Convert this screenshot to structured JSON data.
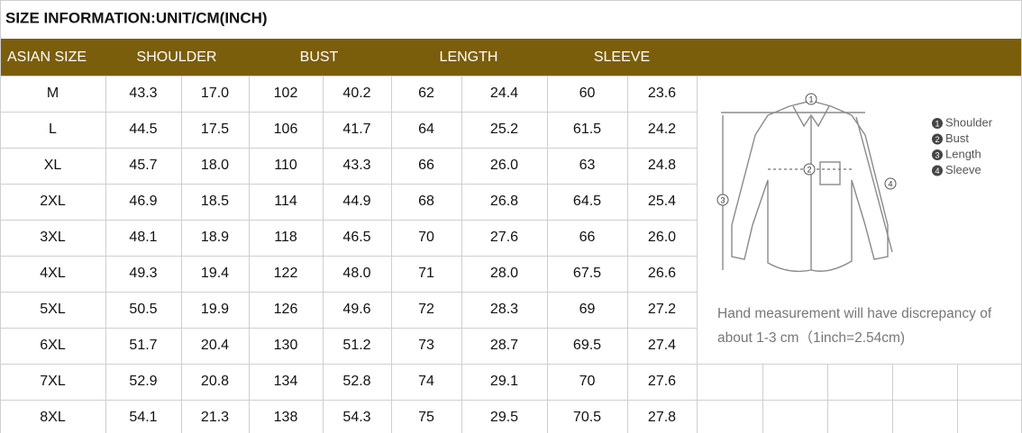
{
  "header": {
    "title": "SIZE INFORMATION:UNIT/CM(INCH)",
    "columns": [
      "ASIAN SIZE",
      "SHOULDER",
      "BUST",
      "LENGTH",
      "SLEEVE"
    ]
  },
  "table": {
    "rows": [
      [
        "M",
        "43.3",
        "17.0",
        "102",
        "40.2",
        "62",
        "24.4",
        "60",
        "23.6"
      ],
      [
        "L",
        "44.5",
        "17.5",
        "106",
        "41.7",
        "64",
        "25.2",
        "61.5",
        "24.2"
      ],
      [
        "XL",
        "45.7",
        "18.0",
        "110",
        "43.3",
        "66",
        "26.0",
        "63",
        "24.8"
      ],
      [
        "2XL",
        "46.9",
        "18.5",
        "114",
        "44.9",
        "68",
        "26.8",
        "64.5",
        "25.4"
      ],
      [
        "3XL",
        "48.1",
        "18.9",
        "118",
        "46.5",
        "70",
        "27.6",
        "66",
        "26.0"
      ],
      [
        "4XL",
        "49.3",
        "19.4",
        "122",
        "48.0",
        "71",
        "28.0",
        "67.5",
        "26.6"
      ],
      [
        "5XL",
        "50.5",
        "19.9",
        "126",
        "49.6",
        "72",
        "28.3",
        "69",
        "27.2"
      ],
      [
        "6XL",
        "51.7",
        "20.4",
        "130",
        "51.2",
        "73",
        "28.7",
        "69.5",
        "27.4"
      ],
      [
        "7XL",
        "52.9",
        "20.8",
        "134",
        "52.8",
        "74",
        "29.1",
        "70",
        "27.6"
      ],
      [
        "8XL",
        "54.1",
        "21.3",
        "138",
        "54.3",
        "75",
        "29.5",
        "70.5",
        "27.8"
      ]
    ]
  },
  "diagram": {
    "legend": [
      {
        "num": "1",
        "label": "Shoulder"
      },
      {
        "num": "2",
        "label": "Bust"
      },
      {
        "num": "3",
        "label": "Length"
      },
      {
        "num": "4",
        "label": "Sleeve"
      }
    ],
    "note": [
      "Hand measurement will have discrepancy of",
      "about 1-3 cm（1inch=2.54cm)"
    ]
  }
}
